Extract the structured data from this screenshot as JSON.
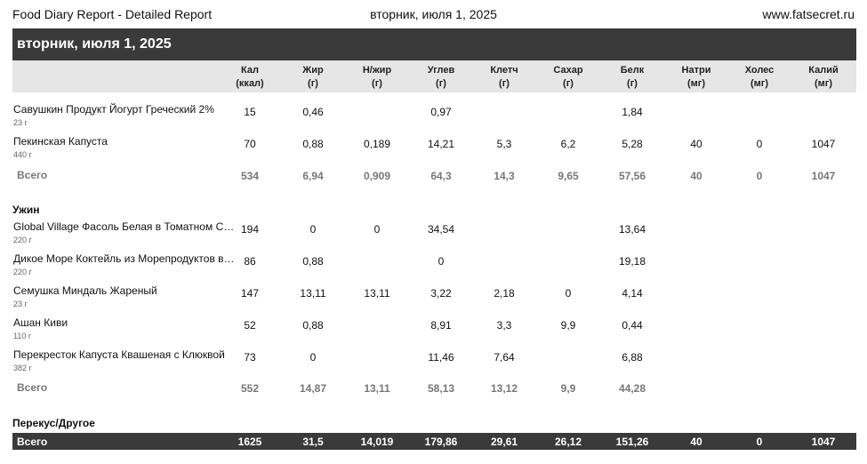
{
  "header": {
    "title": "Food Diary Report - Detailed Report",
    "date": "вторник, июля 1, 2025",
    "site": "www.fatsecret.ru"
  },
  "date_band": "вторник, июля 1, 2025",
  "columns": [
    {
      "name": "Кал",
      "unit": "(ккал)"
    },
    {
      "name": "Жир",
      "unit": "(г)"
    },
    {
      "name": "Н/жир",
      "unit": "(г)"
    },
    {
      "name": "Углев",
      "unit": "(г)"
    },
    {
      "name": "Клетч",
      "unit": "(г)"
    },
    {
      "name": "Сахар",
      "unit": "(г)"
    },
    {
      "name": "Белк",
      "unit": "(г)"
    },
    {
      "name": "Натри",
      "unit": "(мг)"
    },
    {
      "name": "Холес",
      "unit": "(мг)"
    },
    {
      "name": "Калий",
      "unit": "(мг)"
    }
  ],
  "meal1": {
    "items": [
      {
        "name": "Савушкин Продукт Йогурт Греческий 2%",
        "amount": "23 г",
        "values": [
          "15",
          "0,46",
          "",
          "0,97",
          "",
          "",
          "1,84",
          "",
          "",
          ""
        ]
      },
      {
        "name": "Пекинская Капуста",
        "amount": "440 г",
        "values": [
          "70",
          "0,88",
          "0,189",
          "14,21",
          "5,3",
          "6,2",
          "5,28",
          "40",
          "0",
          "1047"
        ]
      }
    ],
    "total": {
      "label": "Всего",
      "values": [
        "534",
        "6,94",
        "0,909",
        "64,3",
        "14,3",
        "9,65",
        "57,56",
        "40",
        "0",
        "1047"
      ]
    }
  },
  "meal2": {
    "title": "Ужин",
    "items": [
      {
        "name": "Global Village Фасоль Белая в Томатном Соусе",
        "amount": "220 г",
        "values": [
          "194",
          "0",
          "0",
          "34,54",
          "",
          "",
          "13,64",
          "",
          "",
          ""
        ]
      },
      {
        "name": "Дикое Море Коктейль из Морепродуктов в Масле",
        "amount": "220 г",
        "values": [
          "86",
          "0,88",
          "",
          "0",
          "",
          "",
          "19,18",
          "",
          "",
          ""
        ]
      },
      {
        "name": "Семушка Миндаль Жареный",
        "amount": "23 г",
        "values": [
          "147",
          "13,11",
          "13,11",
          "3,22",
          "2,18",
          "0",
          "4,14",
          "",
          "",
          ""
        ]
      },
      {
        "name": "Ашан Киви",
        "amount": "110 г",
        "values": [
          "52",
          "0,88",
          "",
          "8,91",
          "3,3",
          "9,9",
          "0,44",
          "",
          "",
          ""
        ]
      },
      {
        "name": "Перекресток Капуста Квашеная с Клюквой",
        "amount": "382 г",
        "values": [
          "73",
          "0",
          "",
          "11,46",
          "7,64",
          "",
          "6,88",
          "",
          "",
          ""
        ]
      }
    ],
    "total": {
      "label": "Всего",
      "values": [
        "552",
        "14,87",
        "13,11",
        "58,13",
        "13,12",
        "9,9",
        "44,28",
        "",
        "",
        ""
      ]
    }
  },
  "meal3": {
    "title": "Перекус/Другое"
  },
  "grand_total": {
    "label": "Всего",
    "values": [
      "1625",
      "31,5",
      "14,019",
      "179,86",
      "29,61",
      "26,12",
      "151,26",
      "40",
      "0",
      "1047"
    ]
  }
}
